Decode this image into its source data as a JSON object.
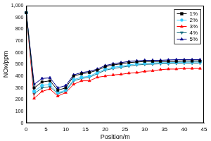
{
  "chart_data": {
    "type": "line",
    "x_label": "Position/m",
    "y_label": "NOx/ppm",
    "x": [
      0,
      2,
      4,
      6,
      8,
      10,
      12,
      14,
      16,
      18,
      20,
      22,
      24,
      26,
      28,
      30,
      32,
      34,
      36,
      38,
      40,
      42,
      44
    ],
    "series": [
      {
        "name": "1%",
        "color": "#000000",
        "marker": "square",
        "line_style": "solid",
        "values": [
          940,
          300,
          350,
          360,
          280,
          300,
          400,
          420,
          430,
          450,
          480,
          495,
          505,
          515,
          520,
          525,
          525,
          525,
          525,
          525,
          528,
          528,
          528
        ]
      },
      {
        "name": "2%",
        "color": "#33ccff",
        "marker": "circle",
        "line_style": "solid",
        "values": [
          940,
          270,
          320,
          330,
          260,
          280,
          370,
          390,
          400,
          430,
          460,
          475,
          485,
          495,
          505,
          510,
          512,
          515,
          515,
          518,
          518,
          520,
          520
        ]
      },
      {
        "name": "3%",
        "color": "#ff0000",
        "marker": "triangle",
        "line_style": "solid",
        "values": [
          940,
          210,
          270,
          290,
          230,
          260,
          330,
          360,
          360,
          390,
          400,
          410,
          415,
          425,
          430,
          440,
          445,
          455,
          460,
          460,
          465,
          465,
          465
        ]
      },
      {
        "name": "4%",
        "color": "#1a6e80",
        "marker": "triangle-down",
        "line_style": "solid",
        "values": [
          940,
          250,
          300,
          310,
          250,
          270,
          360,
          380,
          390,
          420,
          450,
          465,
          475,
          485,
          495,
          500,
          502,
          505,
          505,
          508,
          510,
          510,
          510
        ]
      },
      {
        "name": "5%",
        "color": "#00008b",
        "marker": "triangle",
        "line_style": "solid",
        "values": [
          940,
          330,
          380,
          385,
          300,
          320,
          410,
          430,
          440,
          460,
          490,
          505,
          515,
          525,
          530,
          535,
          535,
          535,
          538,
          540,
          540,
          540,
          540
        ]
      }
    ],
    "xlim": [
      0,
      45
    ],
    "xticks": [
      0,
      5,
      10,
      15,
      20,
      25,
      30,
      35,
      40,
      45
    ],
    "ylim": [
      0,
      1000
    ],
    "yticks": [
      0,
      100,
      200,
      300,
      400,
      500,
      600,
      700,
      800,
      900,
      1000
    ],
    "grid": false,
    "legend": "upper right"
  }
}
